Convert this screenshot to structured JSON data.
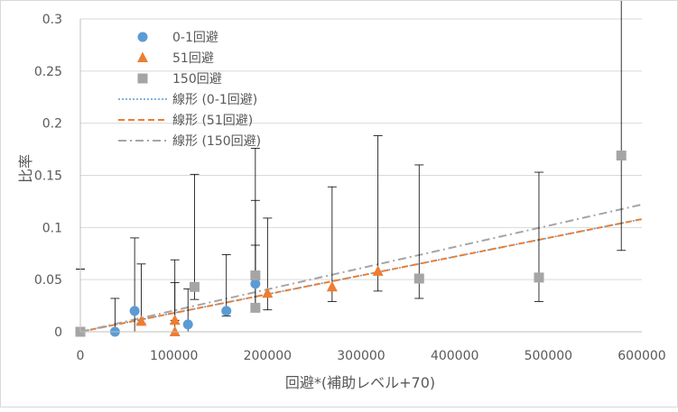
{
  "chart_data": {
    "type": "scatter",
    "xlabel": "回避*(補助レベル+70)",
    "ylabel": "比率",
    "xlim": [
      0,
      600000
    ],
    "ylim": [
      0,
      0.3
    ],
    "x_ticks": [
      "0",
      "100000",
      "200000",
      "300000",
      "400000",
      "500000",
      "600000"
    ],
    "y_ticks": [
      "0",
      "0.05",
      "0.1",
      "0.15",
      "0.2",
      "0.25",
      "0.3"
    ],
    "x_tick_values": [
      0,
      100000,
      200000,
      300000,
      400000,
      500000,
      600000
    ],
    "y_tick_values": [
      0,
      0.05,
      0.1,
      0.15,
      0.2,
      0.25,
      0.3
    ],
    "grid": "horizontal",
    "legend_position": "top-left",
    "series": [
      {
        "name": "0-1回避",
        "marker": "circle",
        "color": "#5b9bd5",
        "points": [
          {
            "x": 0,
            "y": 0,
            "err_lo": 0,
            "err_hi": 0.06
          },
          {
            "x": 37000,
            "y": 0,
            "err_lo": 0,
            "err_hi": 0.032
          },
          {
            "x": 58000,
            "y": 0.02,
            "err_lo": 0.02,
            "err_hi": 0.07
          },
          {
            "x": 115000,
            "y": 0.007,
            "err_lo": 0.007,
            "err_hi": 0.034
          },
          {
            "x": 156000,
            "y": 0.02,
            "err_lo": 0.005,
            "err_hi": 0.054
          },
          {
            "x": 187000,
            "y": 0.046,
            "err_lo": 0.02,
            "err_hi": 0.08
          }
        ]
      },
      {
        "name": "51回避",
        "marker": "triangle",
        "color": "#ed7d31",
        "points": [
          {
            "x": 65000,
            "y": 0.01,
            "err_lo": 0.002,
            "err_hi": 0.055
          },
          {
            "x": 101000,
            "y": 0.011,
            "err_lo": 0,
            "err_hi": 0.058
          },
          {
            "x": 101000,
            "y": 0,
            "err_lo": 0,
            "err_hi": 0.047
          },
          {
            "x": 200000,
            "y": 0.037,
            "err_lo": 0.016,
            "err_hi": 0.072
          },
          {
            "x": 269000,
            "y": 0.043,
            "err_lo": 0.014,
            "err_hi": 0.096
          },
          {
            "x": 318000,
            "y": 0.058,
            "err_lo": 0.019,
            "err_hi": 0.13
          }
        ]
      },
      {
        "name": "150回避",
        "marker": "square",
        "color": "#a5a5a5",
        "points": [
          {
            "x": 0,
            "y": 0,
            "err_lo": 0,
            "err_hi": 0.06
          },
          {
            "x": 122000,
            "y": 0.043,
            "err_lo": 0.012,
            "err_hi": 0.108
          },
          {
            "x": 187000,
            "y": 0.054,
            "err_lo": 0.003,
            "err_hi": 0.122
          },
          {
            "x": 187000,
            "y": 0.023,
            "err_lo": 0.003,
            "err_hi": 0.06
          },
          {
            "x": 362000,
            "y": 0.051,
            "err_lo": 0.019,
            "err_hi": 0.109
          },
          {
            "x": 490000,
            "y": 0.052,
            "err_lo": 0.023,
            "err_hi": 0.101
          },
          {
            "x": 578000,
            "y": 0.169,
            "err_lo": 0.091,
            "err_hi": 0.277
          }
        ]
      }
    ],
    "trendlines": [
      {
        "name": "線形 (0-1回避)",
        "color": "#5b9bd5",
        "dash": "dotted",
        "from": [
          0,
          0
        ],
        "to": [
          600000,
          0.108
        ]
      },
      {
        "name": "線形 (51回避)",
        "color": "#ed7d31",
        "dash": "dashed",
        "from": [
          0,
          0
        ],
        "to": [
          600000,
          0.108
        ]
      },
      {
        "name": "線形 (150回避)",
        "color": "#a5a5a5",
        "dash": "dash-dot",
        "from": [
          0,
          0
        ],
        "to": [
          600000,
          0.122
        ]
      }
    ]
  }
}
